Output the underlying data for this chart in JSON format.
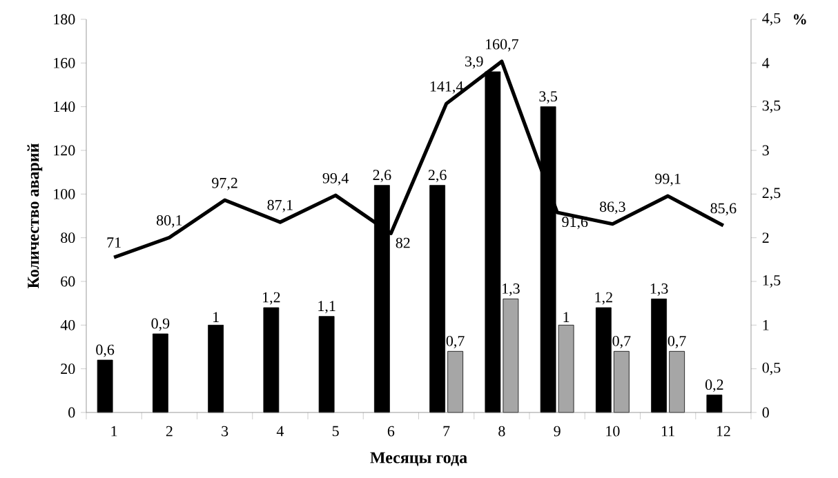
{
  "chart_data": {
    "type": "bar",
    "xlabel": "Месяцы года",
    "ylabel": "Количество аварий",
    "y2label": "%",
    "categories": [
      "1",
      "2",
      "3",
      "4",
      "5",
      "6",
      "7",
      "8",
      "9",
      "10",
      "11",
      "12"
    ],
    "series": [
      {
        "type": "line",
        "axis": "y",
        "color": "#000000",
        "values": [
          71,
          80.1,
          97.2,
          87.1,
          99.4,
          82,
          141.4,
          160.7,
          91.6,
          86.3,
          99.1,
          85.6
        ],
        "value_labels": [
          "71",
          "80,1",
          "97,2",
          "87,1",
          "99,4",
          "82",
          "141,4",
          "160,7",
          "91,6",
          "86,3",
          "99,1",
          "85,6"
        ]
      },
      {
        "axis": "y2",
        "color": "#000000",
        "values": [
          0.6,
          0.9,
          1,
          1.2,
          1.1,
          2.6,
          2.6,
          3.9,
          3.5,
          1.2,
          1.3,
          0.2
        ],
        "value_labels": [
          "0,6",
          "0,9",
          "1",
          "1,2",
          "1,1",
          "2,6",
          "2,6",
          "3,9",
          "3,5",
          "1,2",
          "1,3",
          "0,2"
        ]
      },
      {
        "axis": "y2",
        "color": "#a6a6a6",
        "values": [
          null,
          null,
          null,
          null,
          null,
          null,
          0.7,
          1.3,
          1,
          0.7,
          0.7,
          null
        ],
        "value_labels": [
          null,
          null,
          null,
          null,
          null,
          null,
          "0,7",
          "1,3",
          "1",
          "0,7",
          "0,7",
          null
        ]
      }
    ],
    "ylim": [
      0,
      180
    ],
    "yticks": [
      0,
      20,
      40,
      60,
      80,
      100,
      120,
      140,
      160,
      180
    ],
    "y2lim": [
      0,
      4.5
    ],
    "y2ticks": [
      {
        "value": 0,
        "label": "0"
      },
      {
        "value": 0.5,
        "label": "0,5"
      },
      {
        "value": 1,
        "label": "1"
      },
      {
        "value": 1.5,
        "label": "1,5"
      },
      {
        "value": 2,
        "label": "2"
      },
      {
        "value": 2.5,
        "label": "2,5"
      },
      {
        "value": 3,
        "label": "3"
      },
      {
        "value": 3.5,
        "label": "3,5"
      },
      {
        "value": 4,
        "label": "4"
      },
      {
        "value": 4.5,
        "label": "4,5"
      }
    ],
    "grid": false,
    "marker": "none",
    "line_style": "solid"
  }
}
